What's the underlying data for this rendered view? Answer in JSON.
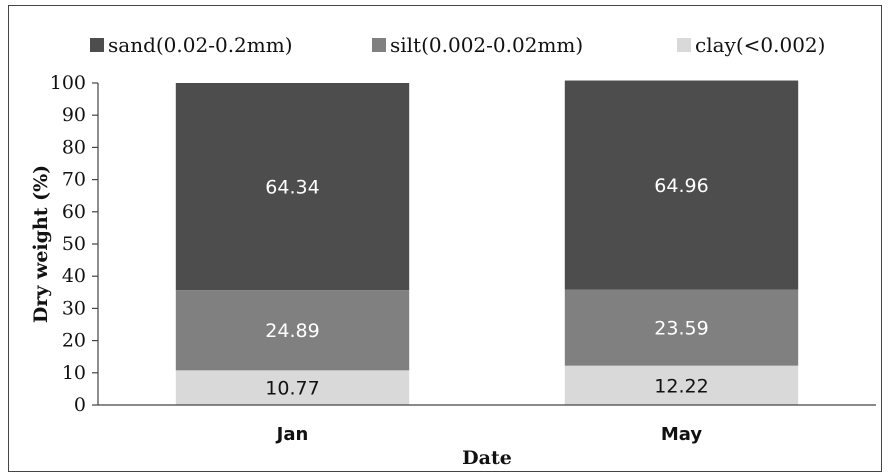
{
  "chart_data": {
    "type": "bar",
    "stacked": true,
    "categories": [
      "Jan",
      "May"
    ],
    "series": [
      {
        "name": "clay(<0.002)",
        "values": [
          10.77,
          12.22
        ],
        "color": "#d9d9d9",
        "label_color": "dark"
      },
      {
        "name": "silt(0.002-0.02mm)",
        "values": [
          24.89,
          23.59
        ],
        "color": "#808080",
        "label_color": "light"
      },
      {
        "name": "sand(0.02-0.2mm)",
        "values": [
          64.34,
          64.96
        ],
        "color": "#4d4d4d",
        "label_color": "light"
      }
    ],
    "legend_order": [
      2,
      1,
      0
    ],
    "legend_position": "top",
    "xlabel": "Date",
    "ylabel": "Dry weight (%)",
    "ylim": [
      0,
      100
    ],
    "yticks": [
      0,
      10,
      20,
      30,
      40,
      50,
      60,
      70,
      80,
      90,
      100
    ],
    "grid": false
  }
}
